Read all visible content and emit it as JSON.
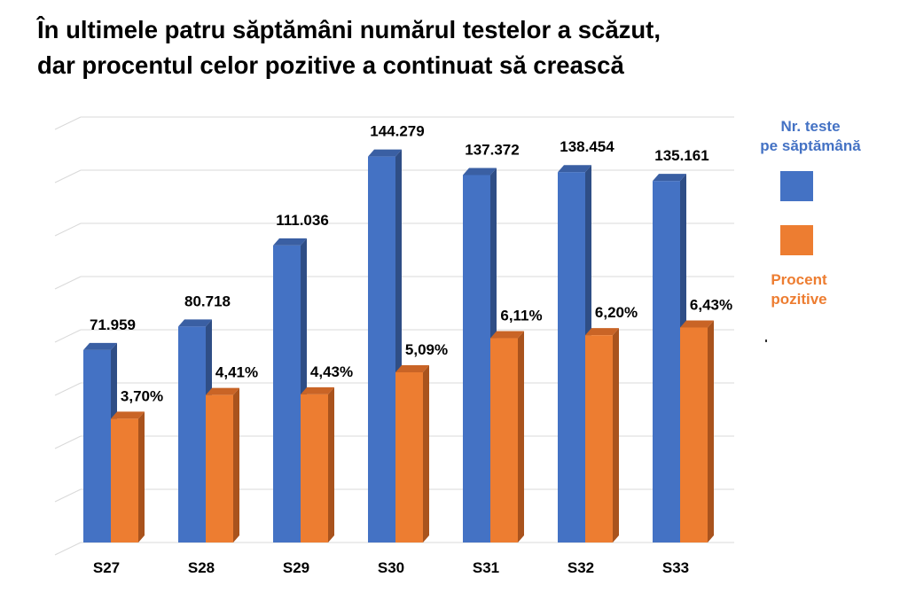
{
  "title_lines": [
    "În ultimele patru săptămâni numărul testelor a scăzut,",
    "dar procentul celor pozitive a continuat să crească"
  ],
  "legend": {
    "tests_label": "Nr. teste\npe săptămână",
    "positive_label": "Procent\npozitive"
  },
  "colors": {
    "tests": "#4472C4",
    "tests_top": "#3A5FA3",
    "tests_side": "#2F4E86",
    "positive": "#ED7D31",
    "positive_top": "#C96426",
    "positive_side": "#A9531D",
    "gridline": "#D9D9D9"
  },
  "chart_data": {
    "type": "bar",
    "categories": [
      "S27",
      "S28",
      "S29",
      "S30",
      "S31",
      "S32",
      "S33"
    ],
    "series": [
      {
        "name": "Nr. teste pe săptămână",
        "values": [
          71959,
          80718,
          111036,
          144279,
          137372,
          138454,
          135161
        ],
        "labels": [
          "71.959",
          "80.718",
          "111.036",
          "144.279",
          "137.372",
          "138.454",
          "135.161"
        ]
      },
      {
        "name": "Procent pozitive",
        "values": [
          3.7,
          4.41,
          4.43,
          5.09,
          6.11,
          6.2,
          6.43
        ],
        "labels": [
          "3,70%",
          "4,41%",
          "4,43%",
          "5,09%",
          "6,11%",
          "6,20%",
          "6,43%"
        ]
      }
    ],
    "ylim_tests": [
      0,
      170000
    ],
    "ylim_percent": [
      0,
      13.6
    ],
    "style": "3d-clustered-column",
    "grid": true,
    "legend_position": "right"
  }
}
